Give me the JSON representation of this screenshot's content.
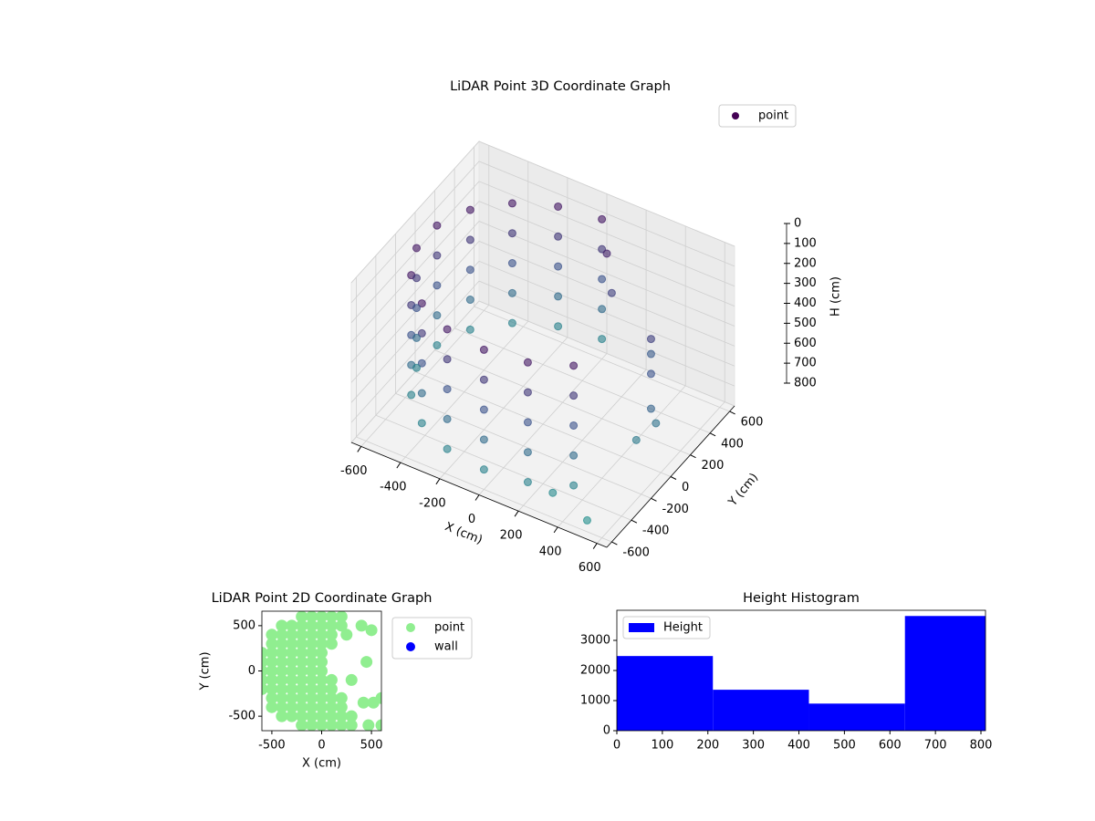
{
  "chart_data": [
    {
      "type": "scatter3d",
      "title": "LiDAR Point 3D Coordinate Graph",
      "xlabel": "X (cm)",
      "ylabel": "Y (cm)",
      "zlabel": "H (cm)",
      "xlim": [
        -650,
        650
      ],
      "ylim": [
        -650,
        650
      ],
      "zlim": [
        800,
        0
      ],
      "xticks": [
        -600,
        -400,
        -200,
        0,
        200,
        400,
        600
      ],
      "yticks": [
        -600,
        -400,
        -200,
        0,
        200,
        400,
        600
      ],
      "zticks": [
        0,
        100,
        200,
        300,
        400,
        500,
        600,
        700,
        800
      ],
      "grid": true,
      "series": [
        {
          "name": "point",
          "color": "#440154",
          "colormap": "viridis",
          "x": [
            0,
            -205,
            -386,
            -520,
            -591,
            -591,
            -520,
            -386,
            -205,
            0,
            205,
            386,
            0,
            -205,
            -386,
            -520,
            -591,
            -591,
            -520,
            -386,
            -205,
            0,
            205,
            386,
            0,
            -205,
            -386,
            -520,
            -591,
            -591,
            -520,
            -386,
            -205,
            0,
            205,
            386,
            0,
            -205,
            -386,
            -520,
            -591,
            -591,
            -520,
            -386,
            -205,
            0,
            205,
            386,
            0,
            -205,
            -386,
            -520,
            -591,
            -591,
            -520,
            -386,
            -205,
            0,
            205,
            386,
            100,
            150,
            450,
            500,
            550,
            550,
            500,
            400,
            300,
            500
          ],
          "y": [
            600,
            564,
            460,
            300,
            104,
            -104,
            -300,
            -460,
            -564,
            -600,
            -564,
            -460,
            600,
            564,
            460,
            300,
            104,
            -104,
            -300,
            -460,
            -564,
            -600,
            -564,
            -460,
            600,
            564,
            460,
            300,
            104,
            -104,
            -300,
            -460,
            -564,
            -600,
            -564,
            -460,
            600,
            564,
            460,
            300,
            104,
            -104,
            -300,
            -460,
            -564,
            -600,
            -564,
            -460,
            600,
            564,
            460,
            300,
            104,
            -104,
            -300,
            -460,
            -564,
            -600,
            -564,
            -460,
            450,
            400,
            200,
            100,
            0,
            50,
            -50,
            300,
            -500,
            -550
          ],
          "z": [
            100,
            100,
            100,
            100,
            100,
            100,
            100,
            100,
            100,
            100,
            100,
            100,
            250,
            250,
            250,
            250,
            250,
            250,
            250,
            250,
            250,
            250,
            250,
            250,
            400,
            400,
            400,
            400,
            400,
            400,
            400,
            400,
            400,
            400,
            400,
            400,
            550,
            550,
            550,
            550,
            550,
            550,
            550,
            550,
            550,
            550,
            550,
            550,
            700,
            700,
            700,
            700,
            700,
            700,
            700,
            700,
            700,
            700,
            700,
            700,
            150,
            300,
            300,
            400,
            500,
            600,
            650,
            450,
            750,
            780
          ]
        }
      ]
    },
    {
      "type": "scatter",
      "title": "LiDAR Point 2D Coordinate Graph",
      "xlabel": "X (cm)",
      "ylabel": "Y (cm)",
      "xlim": [
        -600,
        600
      ],
      "ylim": [
        -660,
        660
      ],
      "xticks": [
        -500,
        0,
        500
      ],
      "yticks": [
        -500,
        0,
        500
      ],
      "series": [
        {
          "name": "point",
          "color": "#90ee90",
          "x": [
            -200,
            -100,
            0,
            100,
            200,
            -400,
            -300,
            -200,
            -100,
            0,
            100,
            200,
            -500,
            -400,
            -300,
            -200,
            -100,
            0,
            100,
            -500,
            -400,
            -300,
            -200,
            -100,
            0,
            100,
            -600,
            -500,
            -400,
            -300,
            -200,
            -100,
            0,
            -600,
            -500,
            -400,
            -300,
            -200,
            -100,
            0,
            -600,
            -500,
            -400,
            -300,
            -200,
            -100,
            0,
            -600,
            -500,
            -400,
            -300,
            -200,
            -100,
            0,
            100,
            -600,
            -500,
            -400,
            -300,
            -200,
            -100,
            0,
            100,
            -500,
            -400,
            -300,
            -200,
            -100,
            0,
            100,
            200,
            -500,
            -400,
            -300,
            -200,
            -100,
            0,
            100,
            200,
            -400,
            -300,
            -200,
            -100,
            0,
            100,
            200,
            300,
            -200,
            -100,
            0,
            100,
            200,
            300,
            400,
            500,
            450,
            300,
            420,
            520,
            600,
            470,
            600,
            250
          ],
          "y": [
            600,
            600,
            600,
            600,
            600,
            500,
            500,
            500,
            500,
            500,
            500,
            500,
            400,
            400,
            400,
            400,
            400,
            400,
            400,
            300,
            300,
            300,
            300,
            300,
            300,
            300,
            200,
            200,
            200,
            200,
            200,
            200,
            200,
            100,
            100,
            100,
            100,
            100,
            100,
            100,
            0,
            0,
            0,
            0,
            0,
            0,
            0,
            -100,
            -100,
            -100,
            -100,
            -100,
            -100,
            -100,
            -100,
            -200,
            -200,
            -200,
            -200,
            -200,
            -200,
            -200,
            -200,
            -300,
            -300,
            -300,
            -300,
            -300,
            -300,
            -300,
            -300,
            -400,
            -400,
            -400,
            -400,
            -400,
            -400,
            -400,
            -400,
            -500,
            -500,
            -500,
            -500,
            -500,
            -500,
            -500,
            -500,
            -600,
            -600,
            -600,
            -600,
            -600,
            -600,
            500,
            450,
            100,
            -100,
            -350,
            -350,
            -300,
            -600,
            -600,
            400
          ]
        },
        {
          "name": "wall",
          "color": "#0000ff",
          "x": [],
          "y": []
        }
      ]
    },
    {
      "type": "histogram",
      "title": "Height Histogram",
      "bins": [
        0,
        211,
        422,
        633,
        844
      ],
      "xlim": [
        0,
        810
      ],
      "ylim": [
        0,
        4000
      ],
      "xticks": [
        0,
        100,
        200,
        300,
        400,
        500,
        600,
        700,
        800
      ],
      "yticks": [
        0,
        1000,
        2000,
        3000
      ],
      "series": [
        {
          "name": "Height",
          "color": "#0000ff",
          "values": [
            2480,
            1360,
            900,
            3810
          ]
        }
      ]
    }
  ]
}
